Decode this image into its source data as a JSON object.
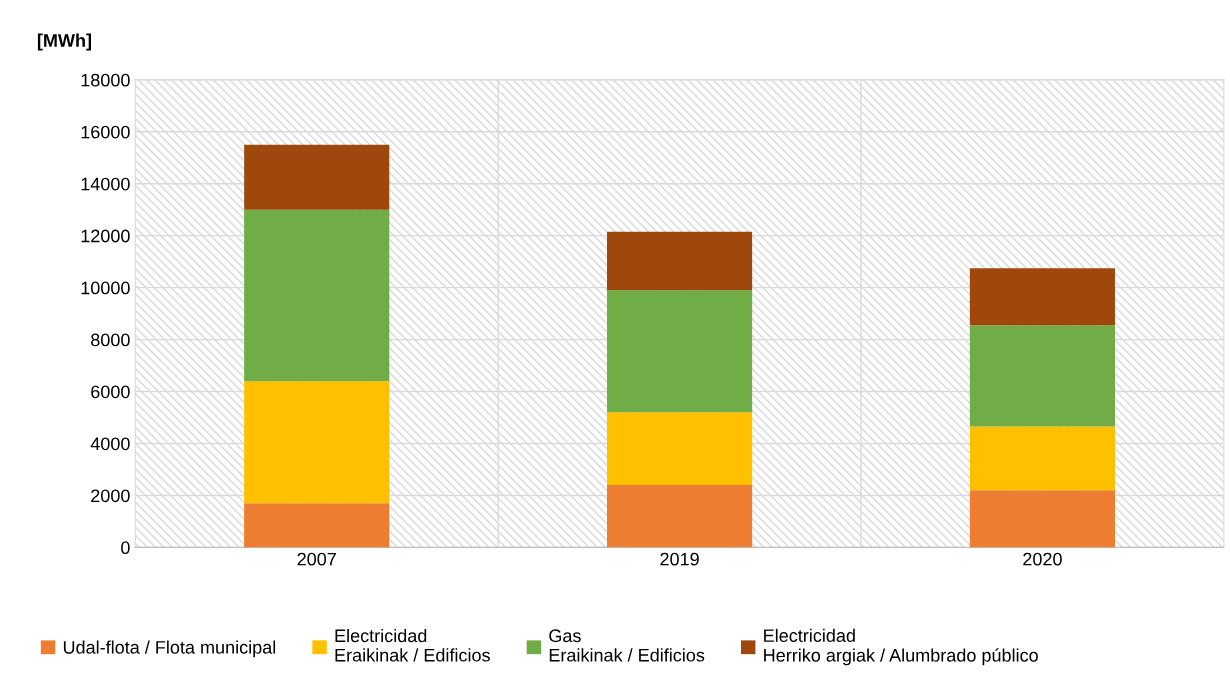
{
  "chart_data": {
    "type": "bar",
    "stacked": true,
    "ylabel": "[MWh]",
    "categories": [
      "2007",
      "2019",
      "2020"
    ],
    "series": [
      {
        "name": "Udal-flota / Flota municipal",
        "color": "#ed7d31",
        "values": [
          1700,
          2400,
          2200
        ]
      },
      {
        "name": "Electricidad\nEraikinak / Edificios",
        "color": "#ffc000",
        "values": [
          4700,
          2800,
          2450
        ]
      },
      {
        "name": "Gas\nEraikinak / Edificios",
        "color": "#70ad47",
        "values": [
          6600,
          4700,
          3900
        ]
      },
      {
        "name": "Electricidad\nHerriko argiak / Alumbrado público",
        "color": "#9e480e",
        "values": [
          2500,
          2250,
          2200
        ]
      }
    ],
    "ylim": [
      0,
      18000
    ],
    "yticks": [
      0,
      2000,
      4000,
      6000,
      8000,
      10000,
      12000,
      14000,
      16000,
      18000
    ],
    "grid": "y",
    "legend": "bottom"
  }
}
